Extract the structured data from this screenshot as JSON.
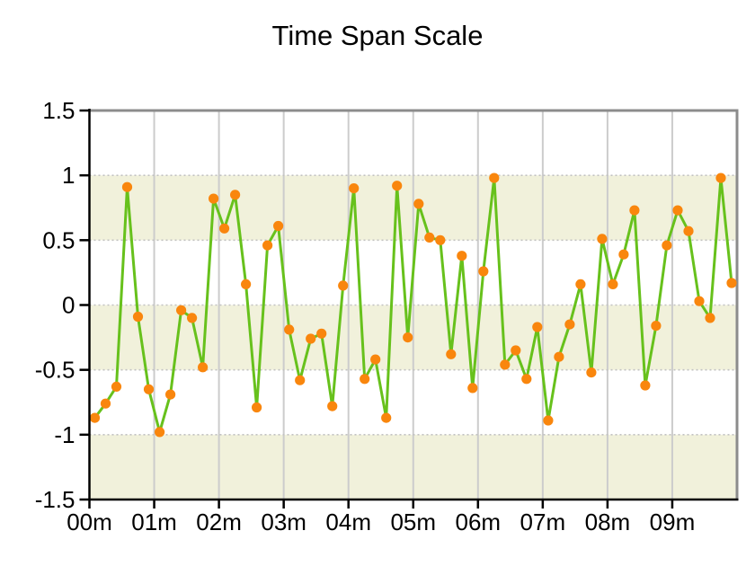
{
  "title": "Time Span Scale",
  "colors": {
    "band": "#F1F1DB",
    "vertical_gridline": "#CCCCCC",
    "dotted_gridline": "#C2C2C2",
    "frame": "#8C8C8C",
    "axis": "#000000",
    "line": "#67C11C",
    "marker": "#F9860D",
    "label": "#000000",
    "background": "#FFFFFF"
  },
  "chart_data": {
    "type": "line",
    "title": "Time Span Scale",
    "xlabel": "",
    "ylabel": "",
    "xlim_seconds": [
      0,
      600
    ],
    "ylim": [
      -1.5,
      1.5
    ],
    "x_tick_minutes": [
      0,
      1,
      2,
      3,
      4,
      5,
      6,
      7,
      8,
      9
    ],
    "x_tick_labels": [
      "00m",
      "01m",
      "02m",
      "03m",
      "04m",
      "05m",
      "06m",
      "07m",
      "08m",
      "09m"
    ],
    "y_ticks": [
      1.5,
      1,
      0.5,
      0,
      -0.5,
      -1,
      -1.5
    ],
    "y_tick_labels": [
      "1.5",
      "1",
      "0.5",
      "0",
      "-0.5",
      "-1",
      "-1.5"
    ],
    "bands": [
      [
        0.5,
        1.0
      ],
      [
        -0.5,
        0.0
      ],
      [
        -1.5,
        -1.0
      ]
    ],
    "dotted_lines_at": [
      1,
      0.5,
      0,
      -0.5,
      -1
    ],
    "grid": "vertical lines at each minute; dotted horizontal lines every 0.5",
    "legend": "none",
    "x_seconds": [
      5,
      15,
      25,
      35,
      45,
      55,
      65,
      75,
      85,
      95,
      105,
      115,
      125,
      135,
      145,
      155,
      165,
      175,
      185,
      195,
      205,
      215,
      225,
      235,
      245,
      255,
      265,
      275,
      285,
      295,
      305,
      315,
      325,
      335,
      345,
      355,
      365,
      375,
      385,
      395,
      405,
      415,
      425,
      435,
      445,
      455,
      465,
      475,
      485,
      495,
      505,
      515,
      525,
      535,
      545,
      555,
      565,
      575,
      585,
      595
    ],
    "values": [
      -0.87,
      -0.76,
      -0.63,
      0.91,
      -0.09,
      -0.65,
      -0.98,
      -0.69,
      -0.04,
      -0.1,
      -0.48,
      0.82,
      0.59,
      0.85,
      0.16,
      -0.79,
      0.46,
      0.61,
      -0.19,
      -0.58,
      -0.26,
      -0.22,
      -0.78,
      0.15,
      0.9,
      -0.57,
      -0.42,
      -0.87,
      0.92,
      -0.25,
      0.78,
      0.52,
      0.5,
      -0.38,
      0.38,
      -0.64,
      0.26,
      0.98,
      -0.46,
      -0.35,
      -0.57,
      -0.17,
      -0.89,
      -0.4,
      -0.15,
      0.16,
      -0.52,
      0.51,
      0.16,
      0.39,
      0.73,
      -0.62,
      -0.16,
      0.46,
      0.73,
      0.57,
      0.03,
      -0.1,
      0.98,
      0.17
    ]
  }
}
